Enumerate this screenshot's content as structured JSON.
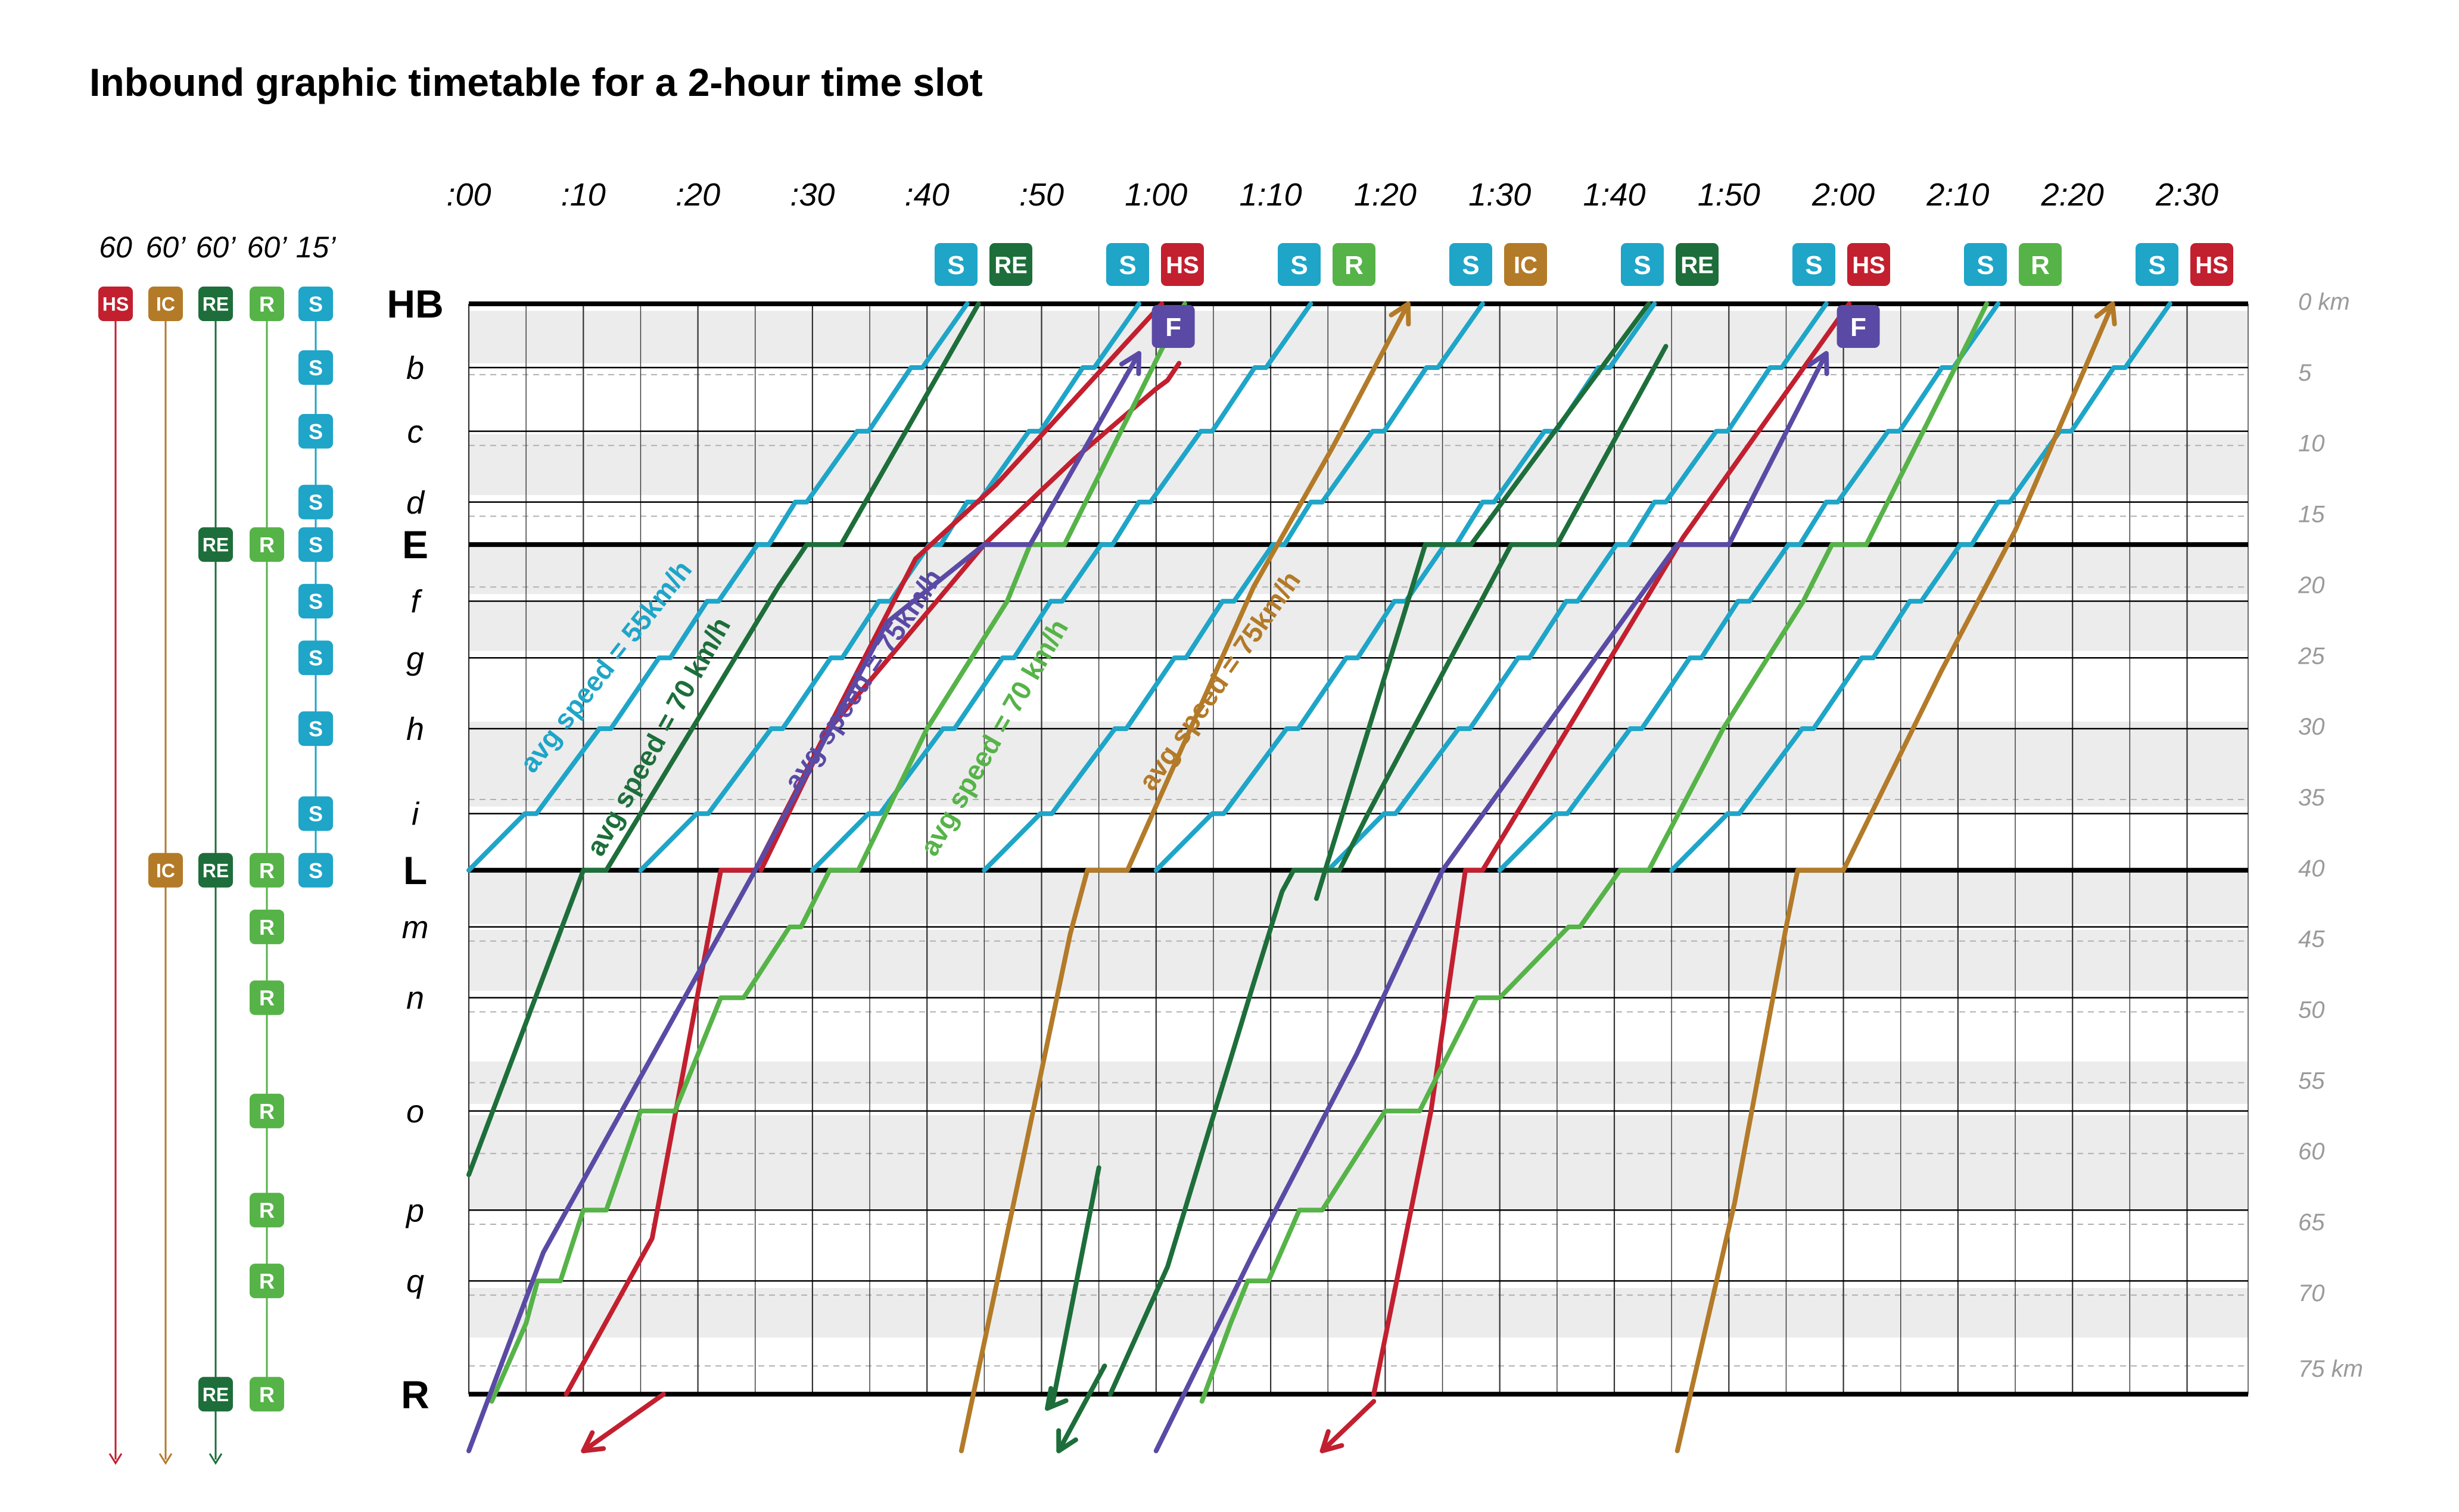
{
  "title": "Inbound graphic timetable for a 2-hour time slot",
  "colors": {
    "S": "#1ea5c8",
    "RE": "#1d6e3a",
    "HS": "#c21f2f",
    "R": "#56b348",
    "IC": "#b37a28",
    "F": "#5a4aa5",
    "band": "#ececec",
    "grid": "#000000",
    "km_text": "#9a9a9a"
  },
  "time_labels": [
    ":00",
    ":10",
    ":20",
    ":30",
    ":40",
    ":50",
    "1:00",
    "1:10",
    "1:20",
    "1:30",
    "1:40",
    "1:50",
    "2:00",
    "2:10",
    "2:20",
    "2:30"
  ],
  "stations": [
    {
      "name": "HB",
      "km": 0,
      "major": true
    },
    {
      "name": "b",
      "km": 4.5,
      "major": false
    },
    {
      "name": "c",
      "km": 9,
      "major": false
    },
    {
      "name": "d",
      "km": 14,
      "major": false
    },
    {
      "name": "E",
      "km": 17,
      "major": true
    },
    {
      "name": "f",
      "km": 21,
      "major": false
    },
    {
      "name": "g",
      "km": 25,
      "major": false
    },
    {
      "name": "h",
      "km": 30,
      "major": false
    },
    {
      "name": "i",
      "km": 36,
      "major": false
    },
    {
      "name": "L",
      "km": 40,
      "major": true
    },
    {
      "name": "m",
      "km": 44,
      "major": false
    },
    {
      "name": "n",
      "km": 49,
      "major": false
    },
    {
      "name": "o",
      "km": 57,
      "major": false
    },
    {
      "name": "p",
      "km": 64,
      "major": false
    },
    {
      "name": "q",
      "km": 69,
      "major": false
    },
    {
      "name": "R",
      "km": 77,
      "major": true
    }
  ],
  "km_labels": [
    "0 km",
    "5",
    "10",
    "15",
    "20",
    "25",
    "30",
    "35",
    "40",
    "45",
    "50",
    "55",
    "60",
    "65",
    "70",
    "75 km"
  ],
  "departure_pairs": [
    [
      "S",
      "RE"
    ],
    [
      "S",
      "HS"
    ],
    [
      "S",
      "R"
    ],
    [
      "S",
      "IC"
    ],
    [
      "S",
      "RE"
    ],
    [
      "S",
      "HS"
    ],
    [
      "S",
      "R"
    ],
    [
      "S",
      "HS"
    ]
  ],
  "services": [
    {
      "name": "HS",
      "frequency": "60"
    },
    {
      "name": "IC",
      "frequency": "60’"
    },
    {
      "name": "RE",
      "frequency": "60’"
    },
    {
      "name": "R",
      "frequency": "60’"
    },
    {
      "name": "S",
      "frequency": "15’"
    }
  ],
  "service_stops": {
    "HS": [
      "HB"
    ],
    "IC": [
      "HB",
      "L"
    ],
    "RE": [
      "HB",
      "E",
      "L",
      "R"
    ],
    "R": [
      "HB",
      "E",
      "L",
      "m",
      "n",
      "o",
      "p",
      "q",
      "R"
    ],
    "S": [
      "HB",
      "b",
      "c",
      "d",
      "E",
      "f",
      "g",
      "h",
      "i",
      "L"
    ]
  },
  "freight_label": "F",
  "speed_labels": [
    {
      "text": "avg speed = 55km/h",
      "service": "S"
    },
    {
      "text": "avg speed = 70 km/h",
      "service": "RE"
    },
    {
      "text": "avg speed = 75km/h",
      "service": "F"
    },
    {
      "text": "avg speed = 70 km/h",
      "service": "R"
    },
    {
      "text": "avg speed = 75km/h",
      "service": "IC"
    }
  ]
}
